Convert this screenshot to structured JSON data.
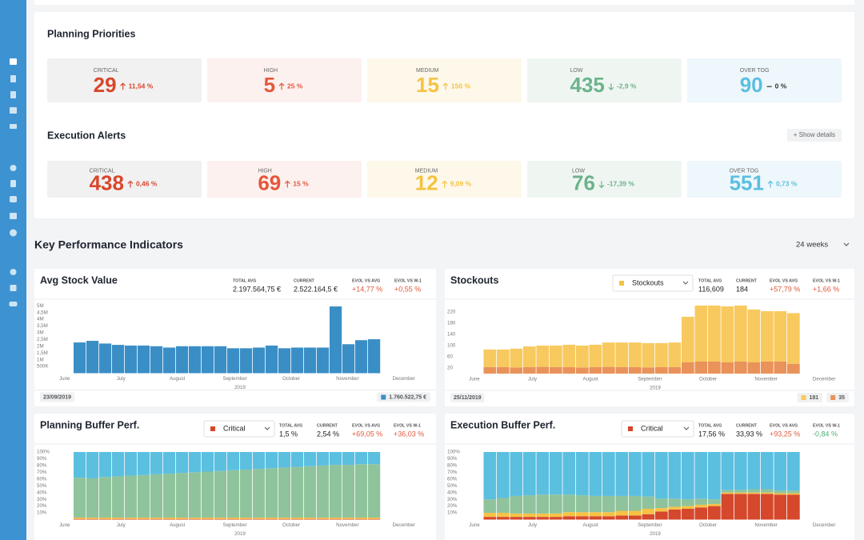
{
  "planning_priorities": {
    "title": "Planning Priorities",
    "cards": [
      {
        "label": "CRITICAL",
        "value": 29,
        "change": "11,54 %",
        "trend": "up",
        "color": "#d9472b",
        "background": "#f1f1f2"
      },
      {
        "label": "HIGH",
        "value": 5,
        "change": "25 %",
        "trend": "up",
        "color": "#e4583b",
        "background": "#fdf1ef"
      },
      {
        "label": "MEDIUM",
        "value": 15,
        "change": "150 %",
        "trend": "up",
        "color": "#f5c242",
        "background": "#fef8ea"
      },
      {
        "label": "LOW",
        "value": 435,
        "change": "-2,9 %",
        "trend": "down",
        "color": "#6db38c",
        "background": "#eff6f2"
      },
      {
        "label": "OVER TOG",
        "value": 90,
        "change": "0 %",
        "trend": "flat",
        "color": "#5bbfe0",
        "background": "#eef7fb"
      }
    ]
  },
  "execution_alerts": {
    "title": "Execution Alerts",
    "button": "+ Show details",
    "cards": [
      {
        "label": "CRITICAL",
        "value": 438,
        "change": "0,46 %",
        "trend": "up",
        "color": "#d9472b",
        "background": "#f1f1f2"
      },
      {
        "label": "HIGH",
        "value": 69,
        "change": "15 %",
        "trend": "up",
        "color": "#e4583b",
        "background": "#fdf1ef"
      },
      {
        "label": "MEDIUM",
        "value": 12,
        "change": "9,09 %",
        "trend": "up",
        "color": "#f5c242",
        "background": "#fef8ea"
      },
      {
        "label": "LOW",
        "value": 76,
        "change": "-17,39 %",
        "trend": "down",
        "color": "#6db38c",
        "background": "#eff6f2"
      },
      {
        "label": "OVER TOG",
        "value": 551,
        "change": "0,73 %",
        "trend": "up",
        "color": "#5bbfe0",
        "background": "#eef7fb"
      }
    ]
  },
  "kpi": {
    "title": "Key Performance Indicators",
    "period": "24 weeks"
  },
  "chart_data": [
    {
      "type": "bar",
      "title": "Avg Stock Value",
      "stats": [
        {
          "label": "TOTAL AVG",
          "value": "2.197.564,75 €"
        },
        {
          "label": "CURRENT",
          "value": "2.522.164,5 €"
        },
        {
          "label": "EVOL VS AVG",
          "value": "+14,77 %",
          "color": "#e4583b"
        },
        {
          "label": "EVOL VS W-1",
          "value": "+0,55 %",
          "color": "#e4583b"
        }
      ],
      "series": [
        {
          "color": "#3a8ec6",
          "values": [
            2280000,
            2400000,
            2200000,
            2100000,
            2050000,
            2050000,
            2000000,
            1900000,
            2000000,
            2000000,
            2000000,
            2000000,
            1850000,
            1850000,
            1900000,
            2050000,
            1850000,
            1900000,
            1900000,
            1900000,
            4950000,
            2150000,
            2450000,
            2520000
          ]
        }
      ],
      "ylim": [
        0,
        5250000
      ],
      "yticks": [
        {
          "value": 500000,
          "label": "500K"
        },
        {
          "value": 1000000,
          "label": "1M"
        },
        {
          "value": 1500000,
          "label": "1,5M"
        },
        {
          "value": 2000000,
          "label": "2M"
        },
        {
          "value": 2500000,
          "label": "2,5M"
        },
        {
          "value": 3000000,
          "label": "3M"
        },
        {
          "value": 3500000,
          "label": "3,5M"
        },
        {
          "value": 4000000,
          "label": "4M"
        },
        {
          "value": 4500000,
          "label": "4,5M"
        },
        {
          "value": 5000000,
          "label": "5M"
        }
      ],
      "xlim": [
        -1.5,
        26.5
      ],
      "xticks": [
        {
          "value": -1.2,
          "label": "June"
        },
        {
          "value": 3.2,
          "label": "July"
        },
        {
          "value": 7.6,
          "label": "August"
        },
        {
          "value": 12.1,
          "label": "September"
        },
        {
          "value": 16.5,
          "label": "October"
        },
        {
          "value": 20.9,
          "label": "November"
        },
        {
          "value": 25.3,
          "label": "December"
        }
      ],
      "xlabel": "2019",
      "date": "23/09/2019",
      "badges": [
        {
          "label": "1.760.522,75 €",
          "color": "#3a8ec6"
        }
      ]
    },
    {
      "type": "bar",
      "title": "Stockouts",
      "stacked": true,
      "selector": {
        "label": "Stockouts",
        "color": "#f6c244"
      },
      "stats": [
        {
          "label": "TOTAL AVG",
          "value": "116,609"
        },
        {
          "label": "CURRENT",
          "value": 184
        },
        {
          "label": "EVOL VS AVG",
          "value": "+57,79 %",
          "color": "#e4583b"
        },
        {
          "label": "EVOL VS W-1",
          "value": "+1,66 %",
          "color": "#e4583b"
        }
      ],
      "series": [
        {
          "color": "#e9925a",
          "values": [
            23,
            23,
            22,
            23,
            24,
            23,
            23,
            22,
            23,
            24,
            23,
            23,
            22,
            23,
            23,
            40,
            43,
            43,
            40,
            43,
            40,
            43,
            43,
            35
          ]
        },
        {
          "color": "#f8c95e",
          "values": [
            63,
            63,
            67,
            74,
            76,
            77,
            80,
            78,
            80,
            87,
            88,
            88,
            87,
            86,
            88,
            163,
            200,
            200,
            200,
            200,
            189,
            180,
            180,
            181
          ]
        }
      ],
      "ylim": [
        0,
        250
      ],
      "yticks": [
        20,
        60,
        100,
        140,
        180,
        220
      ],
      "xlim": [
        -1.5,
        26.5
      ],
      "xticks": [
        {
          "value": -1.2,
          "label": "June"
        },
        {
          "value": 3.2,
          "label": "July"
        },
        {
          "value": 7.6,
          "label": "August"
        },
        {
          "value": 12.1,
          "label": "September"
        },
        {
          "value": 16.5,
          "label": "October"
        },
        {
          "value": 20.9,
          "label": "November"
        },
        {
          "value": 25.3,
          "label": "December"
        }
      ],
      "xlabel": "2019",
      "date": "25/11/2019",
      "badges": [
        {
          "label": "181",
          "color": "#f8c95e"
        },
        {
          "label": "35",
          "color": "#e9925a"
        }
      ]
    },
    {
      "type": "bar",
      "title": "Planning Buffer Perf.",
      "stacked": true,
      "selector": {
        "label": "Critical",
        "color": "#d5482c"
      },
      "stats": [
        {
          "label": "TOTAL AVG",
          "value": "1,5 %"
        },
        {
          "label": "CURRENT",
          "value": "2,54 %"
        },
        {
          "label": "EVOL VS AVG",
          "value": "+69,05 %",
          "color": "#e4583b"
        },
        {
          "label": "EVOL VS W-1",
          "value": "+36,03 %",
          "color": "#e4583b"
        }
      ],
      "series": [
        {
          "name": "Critical",
          "color": "#d5482c",
          "values": [
            1,
            1,
            1,
            1,
            1,
            1,
            1,
            1,
            1,
            1,
            1,
            1,
            1,
            1,
            1,
            1,
            1,
            1,
            1,
            1,
            1,
            1,
            1,
            1
          ]
        },
        {
          "color": "#f6c244",
          "values": [
            2,
            2,
            2,
            2,
            2,
            2,
            2,
            2,
            2,
            2,
            2,
            2,
            2,
            2,
            2,
            2,
            2,
            2,
            2,
            2,
            2,
            2,
            2,
            2
          ]
        },
        {
          "color": "#8fc39c",
          "values": [
            59,
            58,
            60,
            61,
            62,
            63,
            64,
            65,
            66,
            67,
            68,
            69,
            70,
            71,
            72,
            73,
            74,
            75,
            76,
            77,
            78,
            78,
            79,
            79
          ]
        },
        {
          "color": "#5bbfe0",
          "values": [
            38,
            39,
            37,
            36,
            35,
            34,
            33,
            32,
            31,
            30,
            29,
            28,
            27,
            26,
            25,
            24,
            23,
            22,
            21,
            20,
            19,
            19,
            18,
            18
          ]
        }
      ],
      "ylim": [
        0,
        100
      ],
      "yticks": [
        {
          "value": 10,
          "label": "10%"
        },
        {
          "value": 20,
          "label": "20%"
        },
        {
          "value": 30,
          "label": "30%"
        },
        {
          "value": 40,
          "label": "40%"
        },
        {
          "value": 50,
          "label": "50%"
        },
        {
          "value": 60,
          "label": "60%"
        },
        {
          "value": 70,
          "label": "70%"
        },
        {
          "value": 80,
          "label": "80%"
        },
        {
          "value": 90,
          "label": "90%"
        },
        {
          "value": 100,
          "label": "100%"
        }
      ],
      "xlim": [
        -1.5,
        26.5
      ],
      "xticks": [
        {
          "value": -1.2,
          "label": "June"
        },
        {
          "value": 3.2,
          "label": "July"
        },
        {
          "value": 7.6,
          "label": "August"
        },
        {
          "value": 12.1,
          "label": "September"
        },
        {
          "value": 16.5,
          "label": "October"
        },
        {
          "value": 20.9,
          "label": "November"
        },
        {
          "value": 25.3,
          "label": "December"
        }
      ],
      "xlabel": "2019"
    },
    {
      "type": "bar",
      "title": "Execution Buffer Perf.",
      "stacked": true,
      "selector": {
        "label": "Critical",
        "color": "#d5482c"
      },
      "stats": [
        {
          "label": "TOTAL AVG",
          "value": "17,56 %"
        },
        {
          "label": "CURRENT",
          "value": "33,93 %"
        },
        {
          "label": "EVOL VS AVG",
          "value": "+93,25 %",
          "color": "#e4583b"
        },
        {
          "label": "EVOL VS W-1",
          "value": "-0,84 %",
          "color": "#4fae74"
        }
      ],
      "series": [
        {
          "name": "Critical",
          "color": "#d5482c",
          "values": [
            4,
            4,
            4,
            4,
            4,
            4,
            5,
            5,
            5,
            5,
            6,
            6,
            8,
            12,
            15,
            16,
            18,
            20,
            38,
            38,
            38,
            38,
            37,
            37
          ]
        },
        {
          "color": "#f6c244",
          "values": [
            6,
            6,
            5,
            5,
            5,
            5,
            6,
            6,
            6,
            6,
            7,
            7,
            8,
            5,
            4,
            4,
            4,
            3,
            2,
            2,
            2,
            2,
            2,
            2
          ]
        },
        {
          "color": "#8fc39c",
          "values": [
            20,
            22,
            26,
            27,
            28,
            28,
            26,
            25,
            24,
            24,
            22,
            22,
            18,
            14,
            12,
            10,
            9,
            7,
            4,
            4,
            5,
            5,
            4,
            4
          ]
        },
        {
          "color": "#5bbfe0",
          "values": [
            70,
            68,
            65,
            64,
            63,
            63,
            63,
            64,
            65,
            65,
            65,
            65,
            66,
            69,
            69,
            70,
            69,
            70,
            56,
            56,
            55,
            55,
            57,
            57
          ]
        }
      ],
      "ylim": [
        0,
        100
      ],
      "yticks": [
        {
          "value": 10,
          "label": "10%"
        },
        {
          "value": 20,
          "label": "20%"
        },
        {
          "value": 30,
          "label": "30%"
        },
        {
          "value": 40,
          "label": "40%"
        },
        {
          "value": 50,
          "label": "50%"
        },
        {
          "value": 60,
          "label": "60%"
        },
        {
          "value": 70,
          "label": "70%"
        },
        {
          "value": 80,
          "label": "80%"
        },
        {
          "value": 90,
          "label": "90%"
        },
        {
          "value": 100,
          "label": "100%"
        }
      ],
      "xlim": [
        -1.5,
        26.5
      ],
      "xticks": [
        {
          "value": -1.2,
          "label": "June"
        },
        {
          "value": 3.2,
          "label": "July"
        },
        {
          "value": 7.6,
          "label": "August"
        },
        {
          "value": 12.1,
          "label": "September"
        },
        {
          "value": 16.5,
          "label": "October"
        },
        {
          "value": 20.9,
          "label": "November"
        },
        {
          "value": 25.3,
          "label": "December"
        }
      ],
      "xlabel": "2019"
    }
  ]
}
